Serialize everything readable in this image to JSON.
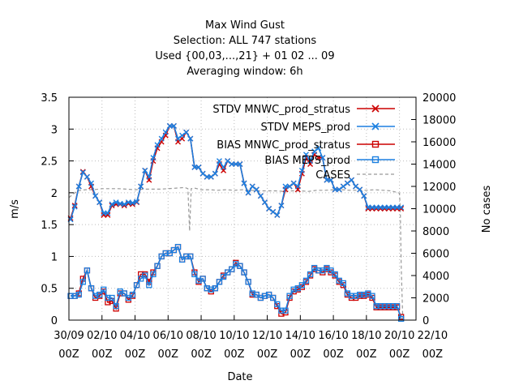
{
  "chart_data": {
    "type": "line",
    "title_lines": [
      "Max Wind Gust",
      "Selection: ALL    747 stations",
      "Used {00,03,...,21} + 01 02 ... 09",
      "Averaging window:  6h"
    ],
    "xlabel": "Date",
    "ylabel": "m/s",
    "y2label": "No cases",
    "xlim": [
      0,
      21
    ],
    "ylim": [
      0,
      3.5
    ],
    "y2lim": [
      0,
      20000
    ],
    "xticks": [
      0,
      2,
      4,
      6,
      8,
      10,
      12,
      14,
      16,
      18,
      20,
      22
    ],
    "xtick_labels_top": [
      "30/09",
      "02/10",
      "04/10",
      "06/10",
      "08/10",
      "10/10",
      "12/10",
      "14/10",
      "16/10",
      "18/10",
      "20/10",
      "22/10"
    ],
    "xtick_labels_bottom": [
      "00Z",
      "00Z",
      "00Z",
      "00Z",
      "00Z",
      "00Z",
      "00Z",
      "00Z",
      "00Z",
      "00Z",
      "00Z",
      "00Z"
    ],
    "yticks": [
      "0",
      "0.5",
      "1",
      "1.5",
      "2",
      "2.5",
      "3",
      "3.5"
    ],
    "y2ticks": [
      "0",
      "2000",
      "4000",
      "6000",
      "8000",
      "10000",
      "12000",
      "14000",
      "16000",
      "18000",
      "20000"
    ],
    "legend_position": "top-right",
    "colors": {
      "red": "#cc0000",
      "blue": "#1b7fe0",
      "gray": "#999999"
    },
    "series": [
      {
        "name": "STDV MNWC_prod_stratus",
        "axis": "y",
        "marker": "x",
        "color": "#cc0000",
        "x": [
          0.1,
          0.35,
          0.6,
          0.85,
          1.1,
          1.35,
          1.6,
          1.85,
          2.1,
          2.35,
          2.6,
          2.85,
          3.1,
          3.35,
          3.6,
          3.85,
          4.1,
          4.35,
          4.6,
          4.85,
          5.1,
          5.35,
          5.6,
          5.85,
          6.1,
          6.35,
          6.6,
          6.85,
          7.1,
          7.35,
          7.6,
          7.85,
          8.1,
          8.35,
          8.6,
          8.85,
          9.1,
          9.35,
          9.6,
          9.85,
          10.1,
          10.35,
          10.6,
          10.85,
          11.1,
          11.35,
          11.6,
          11.85,
          12.1,
          12.35,
          12.6,
          12.85,
          13.1,
          13.35,
          13.6,
          13.85,
          14.1,
          14.35,
          14.6,
          14.85,
          15.1,
          15.35,
          15.6,
          15.85,
          16.1,
          16.35,
          16.6,
          16.85,
          17.1,
          17.35,
          17.6,
          17.85,
          18.1,
          18.35,
          18.6,
          18.85,
          19.1,
          19.35,
          19.6,
          19.85,
          20.1
        ],
        "y": [
          1.6,
          1.8,
          2.1,
          2.33,
          2.25,
          2.1,
          1.95,
          1.85,
          1.65,
          1.65,
          1.8,
          1.82,
          1.82,
          1.8,
          1.83,
          1.82,
          1.85,
          2.1,
          2.35,
          2.2,
          2.5,
          2.7,
          2.8,
          2.9,
          3.05,
          3.05,
          2.8,
          2.85,
          2.95,
          2.85,
          2.4,
          2.4,
          2.3,
          2.25,
          2.25,
          2.3,
          2.45,
          2.35,
          2.5,
          2.45,
          2.45,
          2.45,
          2.15,
          2.0,
          2.1,
          2.05,
          1.95,
          1.85,
          1.75,
          1.7,
          1.65,
          1.8,
          2.05,
          2.1,
          2.15,
          2.05,
          2.3,
          2.55,
          2.45,
          2.6,
          2.55,
          2.55,
          2.2,
          2.2,
          2.05,
          2.05,
          2.1,
          2.15,
          2.2,
          2.1,
          2.05,
          1.95,
          1.75,
          1.75,
          1.75,
          1.75,
          1.75,
          1.75,
          1.75,
          1.75,
          1.75
        ]
      },
      {
        "name": "STDV MEPS_prod",
        "axis": "y",
        "marker": "x",
        "color": "#1b7fe0",
        "x": [
          0.1,
          0.35,
          0.6,
          0.85,
          1.1,
          1.35,
          1.6,
          1.85,
          2.1,
          2.35,
          2.6,
          2.85,
          3.1,
          3.35,
          3.6,
          3.85,
          4.1,
          4.35,
          4.6,
          4.85,
          5.1,
          5.35,
          5.6,
          5.85,
          6.1,
          6.35,
          6.6,
          6.85,
          7.1,
          7.35,
          7.6,
          7.85,
          8.1,
          8.35,
          8.6,
          8.85,
          9.1,
          9.35,
          9.6,
          9.85,
          10.1,
          10.35,
          10.6,
          10.85,
          11.1,
          11.35,
          11.6,
          11.85,
          12.1,
          12.35,
          12.6,
          12.85,
          13.1,
          13.35,
          13.6,
          13.85,
          14.1,
          14.35,
          14.6,
          14.85,
          15.1,
          15.35,
          15.6,
          15.85,
          16.1,
          16.35,
          16.6,
          16.85,
          17.1,
          17.35,
          17.6,
          17.85,
          18.1,
          18.35,
          18.6,
          18.85,
          19.1,
          19.35,
          19.6,
          19.85,
          20.1
        ],
        "y": [
          1.58,
          1.78,
          2.1,
          2.32,
          2.25,
          2.15,
          1.95,
          1.85,
          1.68,
          1.68,
          1.82,
          1.85,
          1.83,
          1.82,
          1.85,
          1.84,
          1.86,
          2.1,
          2.35,
          2.25,
          2.55,
          2.75,
          2.85,
          2.95,
          3.05,
          3.05,
          2.85,
          2.9,
          2.95,
          2.85,
          2.4,
          2.4,
          2.3,
          2.25,
          2.25,
          2.3,
          2.5,
          2.4,
          2.5,
          2.45,
          2.45,
          2.45,
          2.15,
          2.0,
          2.1,
          2.05,
          1.95,
          1.85,
          1.75,
          1.7,
          1.65,
          1.8,
          2.1,
          2.1,
          2.15,
          2.1,
          2.35,
          2.6,
          2.5,
          2.65,
          2.7,
          2.55,
          2.2,
          2.2,
          2.05,
          2.05,
          2.1,
          2.15,
          2.2,
          2.1,
          2.05,
          1.95,
          1.77,
          1.77,
          1.77,
          1.77,
          1.77,
          1.77,
          1.77,
          1.77,
          1.77
        ]
      },
      {
        "name": "BIAS MNWC_prod_stratus",
        "axis": "y",
        "marker": "square",
        "color": "#cc0000",
        "x": [
          0.1,
          0.35,
          0.6,
          0.85,
          1.1,
          1.35,
          1.6,
          1.85,
          2.1,
          2.35,
          2.6,
          2.85,
          3.1,
          3.35,
          3.6,
          3.85,
          4.1,
          4.35,
          4.6,
          4.85,
          5.1,
          5.35,
          5.6,
          5.85,
          6.1,
          6.35,
          6.6,
          6.85,
          7.1,
          7.35,
          7.6,
          7.85,
          8.1,
          8.35,
          8.6,
          8.85,
          9.1,
          9.35,
          9.6,
          9.85,
          10.1,
          10.35,
          10.6,
          10.85,
          11.1,
          11.35,
          11.6,
          11.85,
          12.1,
          12.35,
          12.6,
          12.85,
          13.1,
          13.35,
          13.6,
          13.85,
          14.1,
          14.35,
          14.6,
          14.85,
          15.1,
          15.35,
          15.6,
          15.85,
          16.1,
          16.35,
          16.6,
          16.85,
          17.1,
          17.35,
          17.6,
          17.85,
          18.1,
          18.35,
          18.6,
          18.85,
          19.1,
          19.35,
          19.6,
          19.85,
          20.1
        ],
        "y": [
          0.38,
          0.38,
          0.42,
          0.65,
          0.78,
          0.5,
          0.35,
          0.38,
          0.45,
          0.28,
          0.3,
          0.18,
          0.42,
          0.42,
          0.32,
          0.38,
          0.55,
          0.72,
          0.72,
          0.6,
          0.75,
          0.85,
          1.0,
          1.05,
          1.05,
          1.1,
          1.15,
          0.95,
          1.0,
          1.0,
          0.75,
          0.6,
          0.65,
          0.5,
          0.45,
          0.5,
          0.6,
          0.7,
          0.75,
          0.8,
          0.9,
          0.85,
          0.75,
          0.6,
          0.4,
          0.4,
          0.35,
          0.38,
          0.4,
          0.35,
          0.22,
          0.1,
          0.12,
          0.35,
          0.45,
          0.48,
          0.52,
          0.6,
          0.7,
          0.8,
          0.78,
          0.75,
          0.8,
          0.75,
          0.7,
          0.6,
          0.55,
          0.4,
          0.35,
          0.35,
          0.38,
          0.38,
          0.4,
          0.35,
          0.2,
          0.2,
          0.2,
          0.2,
          0.2,
          0.2,
          0.05
        ]
      },
      {
        "name": "BIAS MEPS_prod",
        "axis": "y",
        "marker": "square",
        "color": "#1b7fe0",
        "x": [
          0.1,
          0.35,
          0.6,
          0.85,
          1.1,
          1.35,
          1.6,
          1.85,
          2.1,
          2.35,
          2.6,
          2.85,
          3.1,
          3.35,
          3.6,
          3.85,
          4.1,
          4.35,
          4.6,
          4.85,
          5.1,
          5.35,
          5.6,
          5.85,
          6.1,
          6.35,
          6.6,
          6.85,
          7.1,
          7.35,
          7.6,
          7.85,
          8.1,
          8.35,
          8.6,
          8.85,
          9.1,
          9.35,
          9.6,
          9.85,
          10.1,
          10.35,
          10.6,
          10.85,
          11.1,
          11.35,
          11.6,
          11.85,
          12.1,
          12.35,
          12.6,
          12.85,
          13.1,
          13.35,
          13.6,
          13.85,
          14.1,
          14.35,
          14.6,
          14.85,
          15.1,
          15.35,
          15.6,
          15.85,
          16.1,
          16.35,
          16.6,
          16.85,
          17.1,
          17.35,
          17.6,
          17.85,
          18.1,
          18.35,
          18.6,
          18.85,
          19.1,
          19.35,
          19.6,
          19.85,
          20.1
        ],
        "y": [
          0.38,
          0.38,
          0.4,
          0.6,
          0.78,
          0.5,
          0.38,
          0.4,
          0.48,
          0.35,
          0.35,
          0.22,
          0.45,
          0.42,
          0.35,
          0.4,
          0.55,
          0.65,
          0.7,
          0.55,
          0.72,
          0.85,
          1.0,
          1.05,
          1.05,
          1.1,
          1.15,
          0.95,
          1.0,
          1.0,
          0.72,
          0.62,
          0.65,
          0.5,
          0.48,
          0.5,
          0.6,
          0.68,
          0.75,
          0.8,
          0.88,
          0.85,
          0.75,
          0.6,
          0.42,
          0.4,
          0.35,
          0.38,
          0.4,
          0.35,
          0.25,
          0.15,
          0.15,
          0.38,
          0.48,
          0.5,
          0.55,
          0.62,
          0.72,
          0.82,
          0.78,
          0.78,
          0.82,
          0.78,
          0.72,
          0.62,
          0.58,
          0.42,
          0.38,
          0.38,
          0.4,
          0.4,
          0.42,
          0.38,
          0.22,
          0.22,
          0.22,
          0.22,
          0.22,
          0.22,
          0.02
        ]
      },
      {
        "name": "CASES",
        "axis": "y2",
        "marker": "none",
        "style": "dashed",
        "color": "#999999",
        "x": [
          0,
          0.5,
          1,
          1.5,
          2,
          2.5,
          3,
          3.5,
          4,
          4.5,
          5,
          5.5,
          6,
          6.5,
          7,
          7.2,
          7.3,
          7.4,
          7.6,
          8,
          8.5,
          9,
          9.5,
          10,
          10.5,
          11,
          11.5,
          12,
          12.5,
          13,
          13.5,
          14,
          14.5,
          15,
          15.5,
          16,
          16.5,
          17,
          17.5,
          18,
          18.5,
          19,
          19.5,
          20,
          20.05,
          20.1,
          20.2
        ],
        "y": [
          11000,
          11600,
          11700,
          11700,
          11800,
          11800,
          11800,
          11750,
          11700,
          11750,
          11750,
          11750,
          11800,
          11850,
          11900,
          11800,
          8000,
          11800,
          11850,
          11700,
          11700,
          11650,
          11700,
          11650,
          11700,
          11650,
          11600,
          11600,
          11600,
          11550,
          11600,
          11600,
          11550,
          11650,
          11650,
          11700,
          11700,
          11650,
          11650,
          11650,
          11700,
          11650,
          11600,
          11400,
          10000,
          5000,
          0
        ]
      }
    ]
  }
}
